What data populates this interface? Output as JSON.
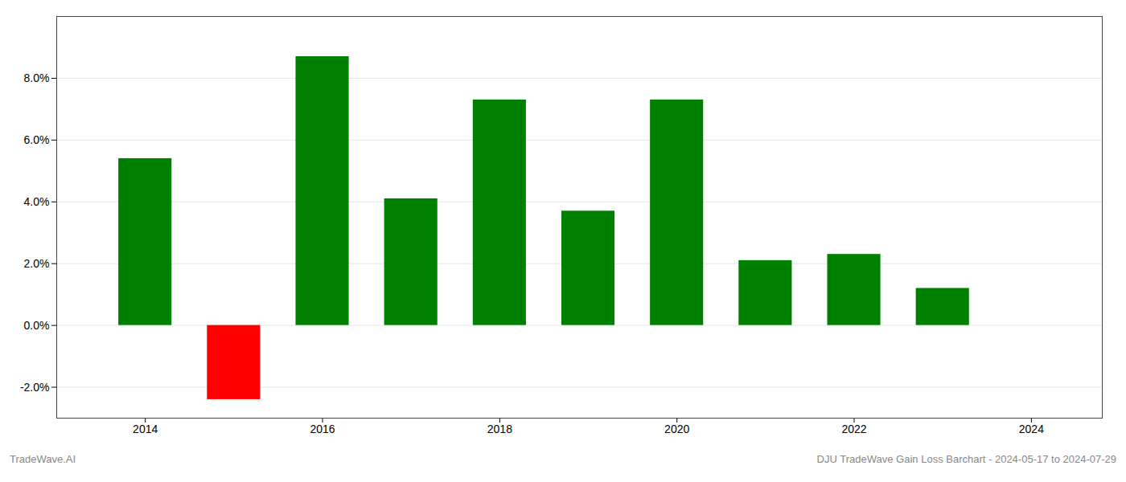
{
  "chart_data": {
    "type": "bar",
    "x": [
      2014,
      2015,
      2016,
      2017,
      2018,
      2019,
      2020,
      2021,
      2022,
      2023
    ],
    "values": [
      0.054,
      -0.024,
      0.087,
      0.041,
      0.073,
      0.037,
      0.073,
      0.021,
      0.023,
      0.012
    ],
    "colors": [
      "#008000",
      "#ff0000",
      "#008000",
      "#008000",
      "#008000",
      "#008000",
      "#008000",
      "#008000",
      "#008000",
      "#008000"
    ],
    "xlim": [
      2013.0,
      2024.8
    ],
    "xticks": [
      2014,
      2016,
      2018,
      2020,
      2022,
      2024
    ],
    "ylim": [
      -0.03,
      0.1
    ],
    "yticks": [
      {
        "value": -0.02,
        "label": "-2.0%"
      },
      {
        "value": 0.0,
        "label": "0.0%"
      },
      {
        "value": 0.02,
        "label": "2.0%"
      },
      {
        "value": 0.04,
        "label": "4.0%"
      },
      {
        "value": 0.06,
        "label": "6.0%"
      },
      {
        "value": 0.08,
        "label": "8.0%"
      }
    ],
    "grid": true,
    "annotations": [
      "TradeWave.AI",
      "DJU TradeWave Gain Loss Barchart - 2024-05-17 to 2024-07-29"
    ]
  }
}
